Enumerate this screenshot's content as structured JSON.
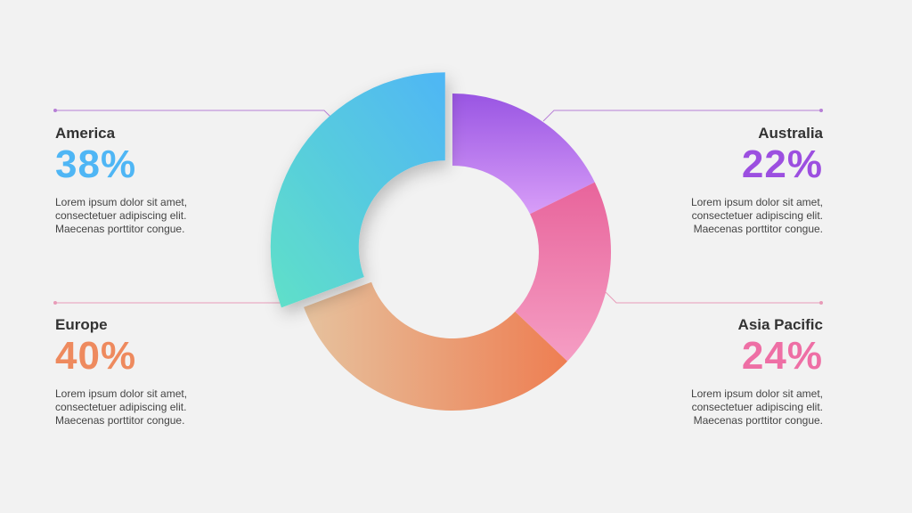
{
  "chart_data": {
    "type": "pie",
    "style": "donut",
    "slices": [
      {
        "label": "America",
        "value": 38,
        "display": "38%",
        "color": "#4fb6f5",
        "color2": "#5fe0c8"
      },
      {
        "label": "Australia",
        "value": 22,
        "display": "22%",
        "color": "#9955e3",
        "color2": "#d89ef8"
      },
      {
        "label": "Asia Pacific",
        "value": 24,
        "display": "24%",
        "color": "#e8649b",
        "color2": "#f59ec4"
      },
      {
        "label": "Europe",
        "value": 40,
        "display": "40%",
        "color": "#ee7e52",
        "color2": "#e6c29e"
      }
    ]
  },
  "descriptions": {
    "america": [
      "Lorem ipsum dolor sit amet,",
      "consectetuer adipiscing elit.",
      "Maecenas porttitor congue."
    ],
    "australia": [
      "Lorem ipsum dolor sit amet,",
      "consectetuer adipiscing elit.",
      "Maecenas porttitor congue."
    ],
    "europe": [
      "Lorem ipsum dolor sit amet,",
      "consectetuer adipiscing elit.",
      "Maecenas porttitor congue."
    ],
    "asia_pacific": [
      "Lorem ipsum dolor sit amet,",
      "consectetuer adipiscing elit.",
      "Maecenas porttitor congue."
    ]
  }
}
